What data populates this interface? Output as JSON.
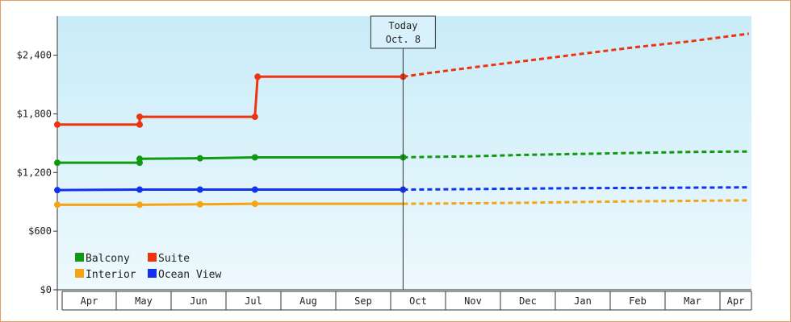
{
  "chart_data": {
    "type": "line",
    "title": "",
    "xlabel": "",
    "ylabel": "",
    "x_tick_labels": [
      "Apr",
      "May",
      "Jun",
      "Jul",
      "Aug",
      "Sep",
      "Oct",
      "Nov",
      "Dec",
      "Jan",
      "Feb",
      "Mar",
      "Apr"
    ],
    "y_ticks": [
      0,
      600,
      1200,
      1800,
      2400
    ],
    "y_tick_labels": [
      "$0",
      "$600",
      "$1,200",
      "$1,800",
      "$2,400"
    ],
    "ylim": [
      0,
      2800
    ],
    "today_marker": {
      "line1": "Today",
      "line2": "Oct. 8",
      "x": 6.3
    },
    "legend": {
      "placement": "bottom-left"
    },
    "series": [
      {
        "name": "Balcony",
        "color": "#119911",
        "history": [
          [
            0,
            1300
          ],
          [
            1.5,
            1300
          ],
          [
            1.5,
            1340
          ],
          [
            2.6,
            1345
          ],
          [
            3.6,
            1355
          ],
          [
            6.3,
            1355
          ]
        ],
        "markers": [
          [
            0,
            1300
          ],
          [
            1.5,
            1300
          ],
          [
            1.5,
            1340
          ],
          [
            2.6,
            1345
          ],
          [
            3.6,
            1355
          ],
          [
            6.3,
            1355
          ]
        ],
        "forecast": [
          [
            6.3,
            1355
          ],
          [
            6.8,
            1360
          ],
          [
            7.5,
            1365
          ],
          [
            8.5,
            1380
          ],
          [
            9.5,
            1390
          ],
          [
            10.5,
            1400
          ],
          [
            11.5,
            1410
          ],
          [
            12.6,
            1415
          ]
        ]
      },
      {
        "name": "Suite",
        "color": "#ee3311",
        "history": [
          [
            0,
            1690
          ],
          [
            1.5,
            1690
          ],
          [
            1.5,
            1770
          ],
          [
            3.6,
            1770
          ],
          [
            3.65,
            2180
          ],
          [
            6.3,
            2180
          ]
        ],
        "markers": [
          [
            0,
            1690
          ],
          [
            1.5,
            1690
          ],
          [
            1.5,
            1770
          ],
          [
            3.6,
            1770
          ],
          [
            3.65,
            2180
          ],
          [
            6.3,
            2180
          ]
        ],
        "forecast": [
          [
            6.3,
            2180
          ],
          [
            6.8,
            2220
          ],
          [
            7.5,
            2270
          ],
          [
            8.5,
            2340
          ],
          [
            9.5,
            2410
          ],
          [
            10.5,
            2480
          ],
          [
            11.5,
            2540
          ],
          [
            12.6,
            2620
          ]
        ]
      },
      {
        "name": "Interior",
        "color": "#f5a511",
        "history": [
          [
            0,
            870
          ],
          [
            1.5,
            870
          ],
          [
            2.6,
            875
          ],
          [
            3.6,
            880
          ],
          [
            6.3,
            880
          ]
        ],
        "markers": [
          [
            0,
            870
          ],
          [
            1.5,
            870
          ],
          [
            2.6,
            875
          ],
          [
            3.6,
            880
          ]
        ],
        "forecast": [
          [
            6.3,
            880
          ],
          [
            7.5,
            885
          ],
          [
            8.5,
            890
          ],
          [
            9.5,
            898
          ],
          [
            10.5,
            905
          ],
          [
            11.5,
            910
          ],
          [
            12.6,
            915
          ]
        ]
      },
      {
        "name": "Ocean View",
        "color": "#1133ee",
        "history": [
          [
            0,
            1020
          ],
          [
            1.5,
            1025
          ],
          [
            2.6,
            1025
          ],
          [
            3.6,
            1025
          ],
          [
            6.3,
            1025
          ]
        ],
        "markers": [
          [
            0,
            1020
          ],
          [
            1.5,
            1025
          ],
          [
            2.6,
            1025
          ],
          [
            3.6,
            1025
          ],
          [
            6.3,
            1025
          ]
        ],
        "forecast": [
          [
            6.3,
            1025
          ],
          [
            7.5,
            1030
          ],
          [
            8.5,
            1035
          ],
          [
            9.5,
            1040
          ],
          [
            10.5,
            1042
          ],
          [
            11.5,
            1045
          ],
          [
            12.6,
            1048
          ]
        ]
      }
    ],
    "legend_order": [
      "Balcony",
      "Suite",
      "Interior",
      "Ocean View"
    ]
  }
}
